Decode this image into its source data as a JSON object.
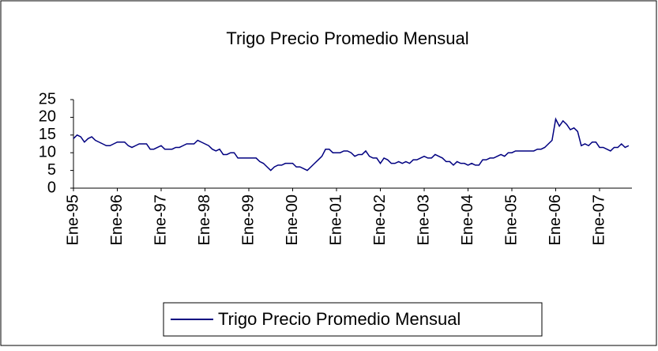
{
  "chart_data": {
    "type": "line",
    "title": "Trigo Precio Promedio Mensual",
    "categories": [
      "Ene-95",
      null,
      null,
      null,
      null,
      null,
      null,
      null,
      null,
      null,
      null,
      null,
      "Ene-96",
      null,
      null,
      null,
      null,
      null,
      null,
      null,
      null,
      null,
      null,
      null,
      "Ene-97",
      null,
      null,
      null,
      null,
      null,
      null,
      null,
      null,
      null,
      null,
      null,
      "Ene-98",
      null,
      null,
      null,
      null,
      null,
      null,
      null,
      null,
      null,
      null,
      null,
      "Ene-99",
      null,
      null,
      null,
      null,
      null,
      null,
      null,
      null,
      null,
      null,
      null,
      "Ene-00",
      null,
      null,
      null,
      null,
      null,
      null,
      null,
      null,
      null,
      null,
      null,
      "Ene-01",
      null,
      null,
      null,
      null,
      null,
      null,
      null,
      null,
      null,
      null,
      null,
      "Ene-02",
      null,
      null,
      null,
      null,
      null,
      null,
      null,
      null,
      null,
      null,
      null,
      "Ene-03",
      null,
      null,
      null,
      null,
      null,
      null,
      null,
      null,
      null,
      null,
      null,
      "Ene-04",
      null,
      null,
      null,
      null,
      null,
      null,
      null,
      null,
      null,
      null,
      null,
      "Ene-05",
      null,
      null,
      null,
      null,
      null,
      null,
      null,
      null,
      null,
      null,
      null,
      "Ene-06",
      null,
      null,
      null,
      null,
      null,
      null,
      null,
      null,
      null,
      null,
      null,
      "Ene-07",
      null,
      null,
      null,
      null,
      null,
      null,
      null,
      null
    ],
    "series": [
      {
        "name": "Trigo Precio Promedio Mensual",
        "color": "#000080",
        "values": [
          14,
          15,
          14.5,
          13,
          14,
          14.5,
          13.5,
          13,
          12.5,
          12,
          12,
          12.5,
          13,
          13,
          13,
          12,
          11.5,
          12,
          12.5,
          12.5,
          12.5,
          11,
          11,
          11.5,
          12,
          11,
          11,
          11,
          11.5,
          11.5,
          12,
          12.5,
          12.5,
          12.5,
          13.5,
          13,
          12.5,
          12,
          11,
          10.5,
          11,
          9.5,
          9.5,
          10,
          10,
          8.5,
          8.5,
          8.5,
          8.5,
          8.5,
          8.5,
          7.5,
          7,
          6,
          5,
          6,
          6.5,
          6.5,
          7,
          7,
          7,
          6,
          6,
          5.5,
          5,
          6,
          7,
          8,
          9,
          11,
          11,
          10,
          10,
          10,
          10.5,
          10.5,
          10,
          9,
          9.5,
          9.5,
          10.5,
          9,
          8.5,
          8.5,
          7,
          8.5,
          8,
          7,
          7,
          7.5,
          7,
          7.5,
          7,
          8,
          8,
          8.5,
          9,
          8.5,
          8.5,
          9.5,
          9,
          8.5,
          7.5,
          7.5,
          6.5,
          7.5,
          7,
          7,
          6.5,
          7,
          6.5,
          6.5,
          8,
          8,
          8.5,
          8.5,
          9,
          9.5,
          9,
          10,
          10,
          10.5,
          10.5,
          10.5,
          10.5,
          10.5,
          10.5,
          11,
          11,
          11.5,
          12.5,
          13.5,
          19.5,
          17.5,
          19,
          18,
          16.5,
          17,
          16,
          12,
          12.5,
          12,
          13,
          13,
          11.5,
          11.5,
          11,
          10.5,
          11.5,
          11.5,
          12.5,
          11.5,
          12
        ]
      }
    ],
    "ylim": [
      0,
      25
    ],
    "yticks": [
      0,
      5,
      10,
      15,
      20,
      25
    ],
    "grid": false,
    "legend": "bottom"
  }
}
